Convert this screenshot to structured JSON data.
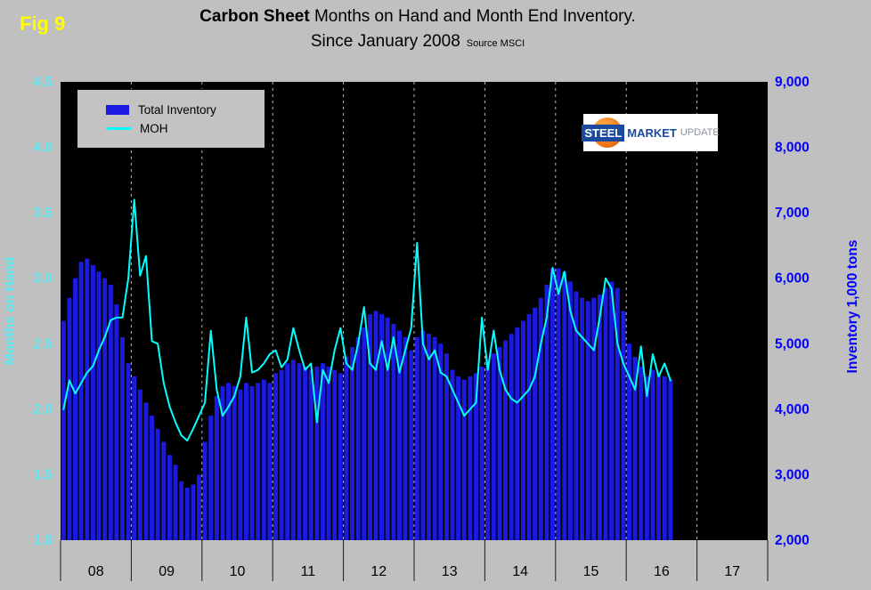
{
  "fig_label": "Fig 9",
  "title": {
    "bold": "Carbon Sheet",
    "rest": " Months on Hand and Month End Inventory.",
    "line2": "Since January 2008",
    "source": "Source MSCI"
  },
  "legend": {
    "items": [
      {
        "label": "Total Inventory",
        "swatch": "bar"
      },
      {
        "label": "MOH",
        "swatch": "line"
      }
    ]
  },
  "logo": {
    "word1": "STEEL",
    "word2": "MARKET",
    "word3": "UPDATE"
  },
  "colors": {
    "background": "#c0c0c0",
    "plot_bg": "#000000",
    "bars": "#1a1ae0",
    "moh_line": "#00ffff",
    "left_axis_text": "#5fe8ef",
    "right_axis_text": "#0000ff",
    "gridline": "#b8b8b8",
    "fig_label": "#ffff00"
  },
  "chart_data": {
    "type": "bar",
    "subtype": "bar+line dual-axis",
    "title": "Carbon Sheet Months on Hand and Month End Inventory. Since January 2008",
    "source": "Source MSCI",
    "start_month": "2008-01",
    "frequency": "monthly",
    "x_year_labels": [
      "08",
      "09",
      "10",
      "11",
      "12",
      "13",
      "14",
      "15",
      "16",
      "17"
    ],
    "left_axis": {
      "title": "Months on Hand",
      "min": 1.0,
      "max": 4.5,
      "step": 0.5
    },
    "right_axis": {
      "title": "Inventory 1,000 tons",
      "min": 2000,
      "max": 9000,
      "step": 1000
    },
    "grid": "vertical-dashed-year-boundaries",
    "legend_position": "top-left",
    "series": [
      {
        "name": "Total Inventory",
        "type": "bar",
        "axis": "right",
        "values": [
          5350,
          5700,
          6000,
          6250,
          6300,
          6200,
          6100,
          6000,
          5900,
          5600,
          5100,
          4700,
          4500,
          4300,
          4100,
          3900,
          3700,
          3500,
          3300,
          3150,
          2900,
          2800,
          2850,
          3000,
          3500,
          3900,
          4200,
          4350,
          4400,
          4350,
          4300,
          4400,
          4350,
          4400,
          4450,
          4400,
          4550,
          4600,
          4700,
          4750,
          4700,
          4650,
          4600,
          4650,
          4700,
          4650,
          4600,
          4550,
          4800,
          4950,
          5100,
          5250,
          5450,
          5500,
          5450,
          5400,
          5300,
          5200,
          5100,
          4900,
          5100,
          5200,
          5150,
          5100,
          5000,
          4850,
          4600,
          4500,
          4450,
          4500,
          4550,
          4650,
          4750,
          4850,
          4950,
          5050,
          5150,
          5250,
          5350,
          5450,
          5550,
          5700,
          5900,
          6150,
          6150,
          6100,
          5950,
          5800,
          5700,
          5650,
          5700,
          5750,
          5850,
          5950,
          5850,
          5500,
          5000,
          4800,
          4650,
          4500,
          4600,
          4550,
          4500,
          4450
        ]
      },
      {
        "name": "MOH",
        "type": "line",
        "axis": "left",
        "values": [
          2.0,
          2.22,
          2.12,
          2.2,
          2.28,
          2.33,
          2.45,
          2.55,
          2.68,
          2.7,
          2.7,
          3.0,
          3.6,
          3.02,
          3.17,
          2.52,
          2.5,
          2.2,
          2.02,
          1.9,
          1.8,
          1.76,
          1.85,
          1.95,
          2.05,
          2.6,
          2.15,
          1.95,
          2.02,
          2.1,
          2.25,
          2.7,
          2.28,
          2.3,
          2.35,
          2.42,
          2.45,
          2.32,
          2.38,
          2.62,
          2.45,
          2.3,
          2.35,
          1.9,
          2.3,
          2.2,
          2.45,
          2.62,
          2.35,
          2.3,
          2.5,
          2.78,
          2.35,
          2.3,
          2.52,
          2.3,
          2.55,
          2.28,
          2.45,
          2.62,
          3.27,
          2.5,
          2.38,
          2.45,
          2.28,
          2.25,
          2.15,
          2.05,
          1.95,
          2.0,
          2.05,
          2.7,
          2.3,
          2.6,
          2.3,
          2.15,
          2.08,
          2.05,
          2.1,
          2.15,
          2.25,
          2.5,
          2.7,
          3.08,
          2.88,
          3.05,
          2.75,
          2.6,
          2.55,
          2.5,
          2.45,
          2.7,
          3.0,
          2.92,
          2.5,
          2.35,
          2.25,
          2.15,
          2.48,
          2.1,
          2.42,
          2.25,
          2.35,
          2.22
        ]
      }
    ]
  }
}
